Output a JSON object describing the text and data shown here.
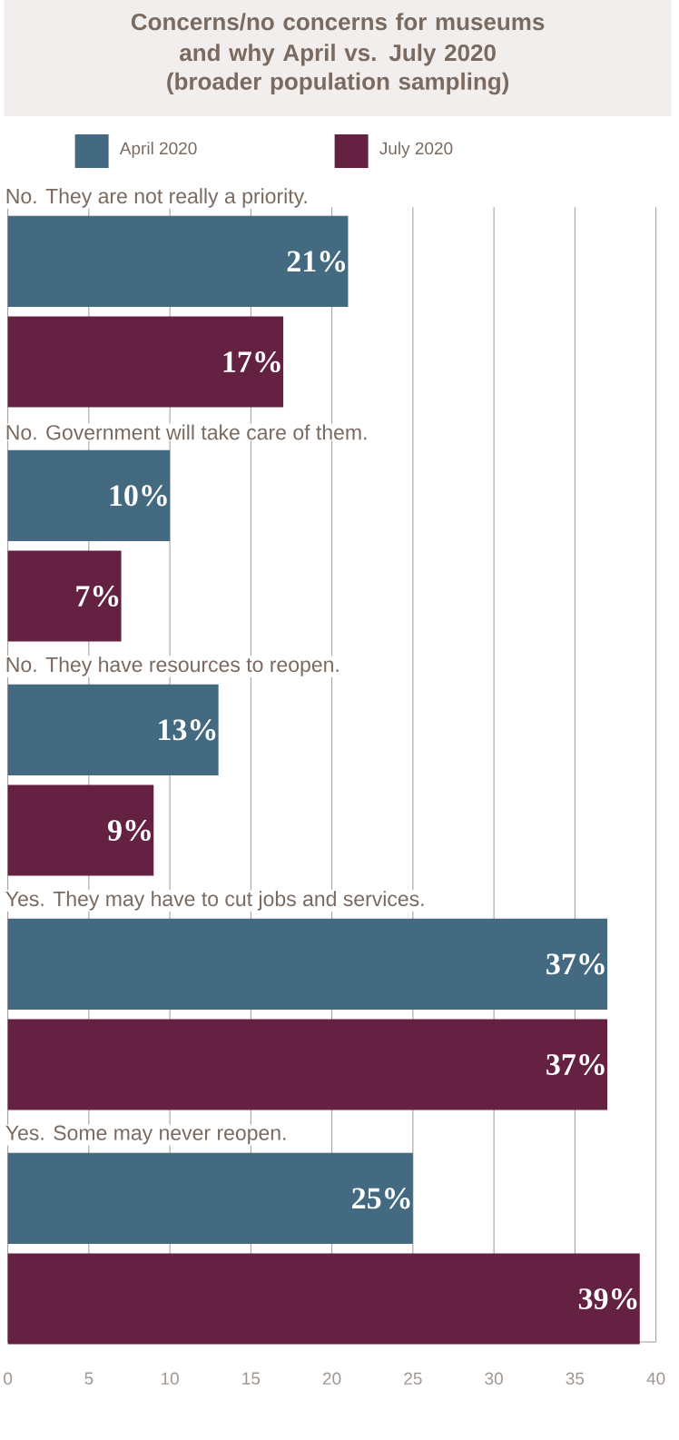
{
  "chart_data": {
    "type": "bar",
    "orientation": "horizontal",
    "title": "Concerns/no concerns for museums and why April vs. July 2020",
    "subtitle": "(broader population sampling)",
    "categories": [
      "No. They are not really a priority.",
      "No. Government will take care of them.",
      "No. They have resources to reopen.",
      "Yes. They may have to cut jobs and services.",
      "Yes. Some may never reopen."
    ],
    "series": [
      {
        "name": "April 2020",
        "color": "#436a80",
        "values": [
          21,
          10,
          13,
          37,
          25
        ],
        "value_labels": [
          "21%",
          "10%",
          "13%",
          "37%",
          "25%"
        ]
      },
      {
        "name": "July 2020",
        "color": "#652142",
        "values": [
          17,
          7,
          9,
          37,
          39
        ],
        "value_labels": [
          "17%",
          "7%",
          "9%",
          "37%",
          "39%"
        ]
      }
    ],
    "xlim": [
      0,
      40
    ],
    "xticks": [
      0,
      5,
      10,
      15,
      20,
      25,
      30,
      35,
      40
    ],
    "grid": "x",
    "legend": "top"
  }
}
